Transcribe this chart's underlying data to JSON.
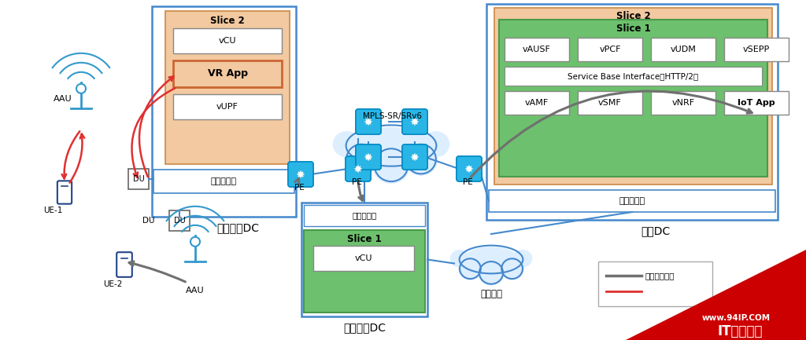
{
  "bg_color": "#ffffff",
  "access_dc_label": "接入边缘DC",
  "transport_dc_label": "传输边缘DC",
  "core_dc_label": "核心DC",
  "slice2_color_light": "#f0c8a0",
  "slice1_color": "#6dc06d",
  "virt_platform_text": "虚拟化平台",
  "blue_router_fill": "#29b6e6",
  "blue_router_edge": "#0288c1",
  "blue_dc_edge": "#4488cc",
  "legend_line1_color": "#707070",
  "legend_line2_color": "#e03030",
  "watermark_bg": "#cc0000",
  "watermark_text1": "www.94IP.COM",
  "watermark_text2": "IT运维空间",
  "legend_text": "切片转发路径"
}
